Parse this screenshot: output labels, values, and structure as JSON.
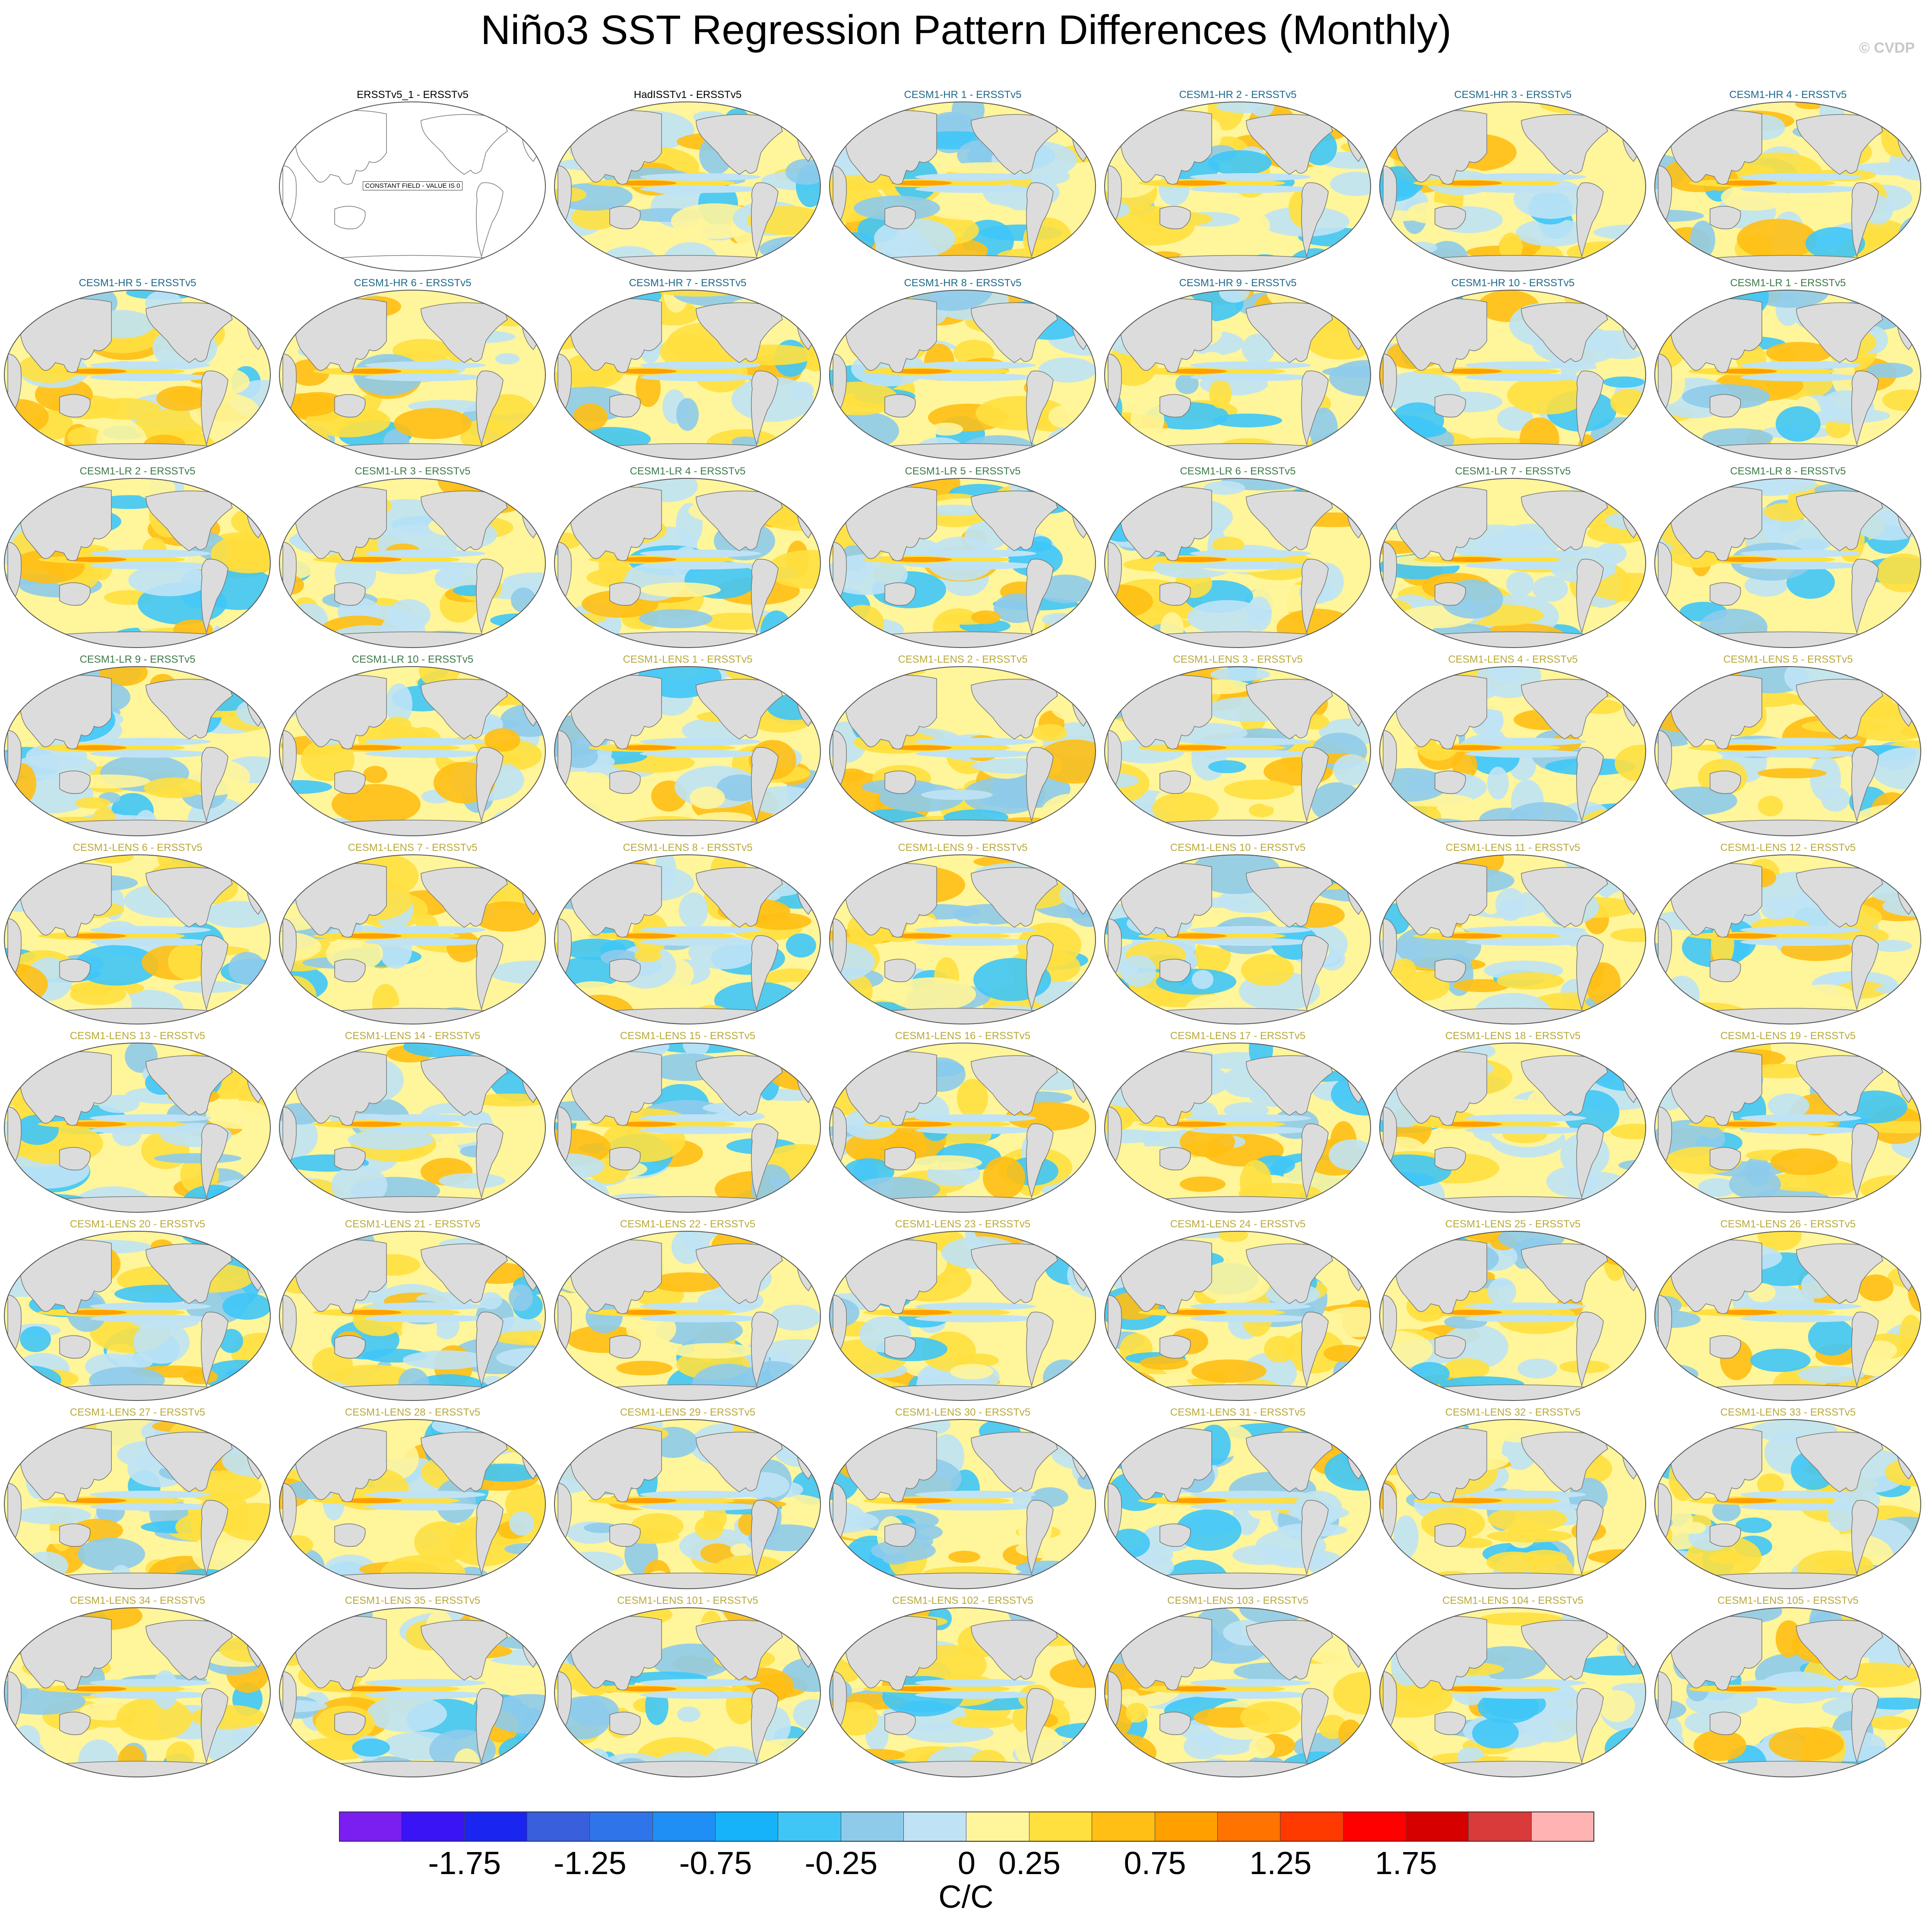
{
  "title": "Niño3 SST Regression Pattern Differences (Monthly)",
  "watermark": "© CVDP",
  "colors": {
    "obs_title": "#000000",
    "hr_title": "#1f6a8a",
    "lr_title": "#3f7a4a",
    "lens_title": "#b8aa3a",
    "land": "#dcdcdc",
    "coast": "#777777"
  },
  "panels": [
    {
      "label": "ERSSTv5_1 - ERSSTv5",
      "group": "obs",
      "constant_field": true,
      "constant_label": "CONSTANT FIELD - VALUE IS 0"
    },
    {
      "label": "HadISSTv1 - ERSSTv5",
      "group": "obs",
      "seed": 2
    },
    {
      "label": "CESM1-HR 1 - ERSSTv5",
      "group": "hr",
      "seed": 3
    },
    {
      "label": "CESM1-HR 2 - ERSSTv5",
      "group": "hr",
      "seed": 4
    },
    {
      "label": "CESM1-HR 3 - ERSSTv5",
      "group": "hr",
      "seed": 5
    },
    {
      "label": "CESM1-HR 4 - ERSSTv5",
      "group": "hr",
      "seed": 6
    },
    {
      "label": "CESM1-HR 5 - ERSSTv5",
      "group": "hr",
      "seed": 7
    },
    {
      "label": "CESM1-HR 6 - ERSSTv5",
      "group": "hr",
      "seed": 8
    },
    {
      "label": "CESM1-HR 7 - ERSSTv5",
      "group": "hr",
      "seed": 9
    },
    {
      "label": "CESM1-HR 8 - ERSSTv5",
      "group": "hr",
      "seed": 10
    },
    {
      "label": "CESM1-HR 9 - ERSSTv5",
      "group": "hr",
      "seed": 11
    },
    {
      "label": "CESM1-HR 10 - ERSSTv5",
      "group": "hr",
      "seed": 12
    },
    {
      "label": "CESM1-LR 1 - ERSSTv5",
      "group": "lr",
      "seed": 13
    },
    {
      "label": "CESM1-LR 2 - ERSSTv5",
      "group": "lr",
      "seed": 14
    },
    {
      "label": "CESM1-LR 3 - ERSSTv5",
      "group": "lr",
      "seed": 15
    },
    {
      "label": "CESM1-LR 4 - ERSSTv5",
      "group": "lr",
      "seed": 16
    },
    {
      "label": "CESM1-LR 5 - ERSSTv5",
      "group": "lr",
      "seed": 17
    },
    {
      "label": "CESM1-LR 6 - ERSSTv5",
      "group": "lr",
      "seed": 18
    },
    {
      "label": "CESM1-LR 7 - ERSSTv5",
      "group": "lr",
      "seed": 19
    },
    {
      "label": "CESM1-LR 8 - ERSSTv5",
      "group": "lr",
      "seed": 20
    },
    {
      "label": "CESM1-LR 9 - ERSSTv5",
      "group": "lr",
      "seed": 21
    },
    {
      "label": "CESM1-LR 10 - ERSSTv5",
      "group": "lr",
      "seed": 22
    },
    {
      "label": "CESM1-LENS 1 - ERSSTv5",
      "group": "lens",
      "seed": 23
    },
    {
      "label": "CESM1-LENS 2 - ERSSTv5",
      "group": "lens",
      "seed": 24
    },
    {
      "label": "CESM1-LENS 3 - ERSSTv5",
      "group": "lens",
      "seed": 25
    },
    {
      "label": "CESM1-LENS 4 - ERSSTv5",
      "group": "lens",
      "seed": 26
    },
    {
      "label": "CESM1-LENS 5 - ERSSTv5",
      "group": "lens",
      "seed": 27
    },
    {
      "label": "CESM1-LENS 6 - ERSSTv5",
      "group": "lens",
      "seed": 28
    },
    {
      "label": "CESM1-LENS 7 - ERSSTv5",
      "group": "lens",
      "seed": 29
    },
    {
      "label": "CESM1-LENS 8 - ERSSTv5",
      "group": "lens",
      "seed": 30
    },
    {
      "label": "CESM1-LENS 9 - ERSSTv5",
      "group": "lens",
      "seed": 31
    },
    {
      "label": "CESM1-LENS 10 - ERSSTv5",
      "group": "lens",
      "seed": 32
    },
    {
      "label": "CESM1-LENS 11 - ERSSTv5",
      "group": "lens",
      "seed": 33
    },
    {
      "label": "CESM1-LENS 12 - ERSSTv5",
      "group": "lens",
      "seed": 34
    },
    {
      "label": "CESM1-LENS 13 - ERSSTv5",
      "group": "lens",
      "seed": 35
    },
    {
      "label": "CESM1-LENS 14 - ERSSTv5",
      "group": "lens",
      "seed": 36
    },
    {
      "label": "CESM1-LENS 15 - ERSSTv5",
      "group": "lens",
      "seed": 37
    },
    {
      "label": "CESM1-LENS 16 - ERSSTv5",
      "group": "lens",
      "seed": 38
    },
    {
      "label": "CESM1-LENS 17 - ERSSTv5",
      "group": "lens",
      "seed": 39
    },
    {
      "label": "CESM1-LENS 18 - ERSSTv5",
      "group": "lens",
      "seed": 40
    },
    {
      "label": "CESM1-LENS 19 - ERSSTv5",
      "group": "lens",
      "seed": 41
    },
    {
      "label": "CESM1-LENS 20 - ERSSTv5",
      "group": "lens",
      "seed": 42
    },
    {
      "label": "CESM1-LENS 21 - ERSSTv5",
      "group": "lens",
      "seed": 43
    },
    {
      "label": "CESM1-LENS 22 - ERSSTv5",
      "group": "lens",
      "seed": 44
    },
    {
      "label": "CESM1-LENS 23 - ERSSTv5",
      "group": "lens",
      "seed": 45
    },
    {
      "label": "CESM1-LENS 24 - ERSSTv5",
      "group": "lens",
      "seed": 46
    },
    {
      "label": "CESM1-LENS 25 - ERSSTv5",
      "group": "lens",
      "seed": 47
    },
    {
      "label": "CESM1-LENS 26 - ERSSTv5",
      "group": "lens",
      "seed": 48
    },
    {
      "label": "CESM1-LENS 27 - ERSSTv5",
      "group": "lens",
      "seed": 49
    },
    {
      "label": "CESM1-LENS 28 - ERSSTv5",
      "group": "lens",
      "seed": 50
    },
    {
      "label": "CESM1-LENS 29 - ERSSTv5",
      "group": "lens",
      "seed": 51
    },
    {
      "label": "CESM1-LENS 30 - ERSSTv5",
      "group": "lens",
      "seed": 52
    },
    {
      "label": "CESM1-LENS 31 - ERSSTv5",
      "group": "lens",
      "seed": 53
    },
    {
      "label": "CESM1-LENS 32 - ERSSTv5",
      "group": "lens",
      "seed": 54
    },
    {
      "label": "CESM1-LENS 33 - ERSSTv5",
      "group": "lens",
      "seed": 55
    },
    {
      "label": "CESM1-LENS 34 - ERSSTv5",
      "group": "lens",
      "seed": 56
    },
    {
      "label": "CESM1-LENS 35 - ERSSTv5",
      "group": "lens",
      "seed": 57
    },
    {
      "label": "CESM1-LENS 101 - ERSSTv5",
      "group": "lens",
      "seed": 58
    },
    {
      "label": "CESM1-LENS 102 - ERSSTv5",
      "group": "lens",
      "seed": 59
    },
    {
      "label": "CESM1-LENS 103 - ERSSTv5",
      "group": "lens",
      "seed": 60
    },
    {
      "label": "CESM1-LENS 104 - ERSSTv5",
      "group": "lens",
      "seed": 61
    },
    {
      "label": "CESM1-LENS 105 - ERSSTv5",
      "group": "lens",
      "seed": 62
    }
  ],
  "colorbar": {
    "colors": [
      "#7a1ff0",
      "#3a14f5",
      "#1a26f0",
      "#3a5fdc",
      "#2f74e8",
      "#1f8ff5",
      "#16b3fb",
      "#3fc6f7",
      "#8ecbeb",
      "#bfe3f5",
      "#fff59a",
      "#ffe03f",
      "#ffbf14",
      "#ff9f00",
      "#ff7300",
      "#ff3a00",
      "#ff0000",
      "#d60000",
      "#d93b3b",
      "#ffb3b3"
    ],
    "ticks": [
      "-1.75",
      "-1.25",
      "-0.75",
      "-0.25",
      "0",
      "0.25",
      "0.75",
      "1.25",
      "1.75"
    ],
    "tick_boundary_index": [
      2,
      4,
      6,
      8,
      10,
      11,
      13,
      15,
      17
    ],
    "units": "C/C"
  }
}
